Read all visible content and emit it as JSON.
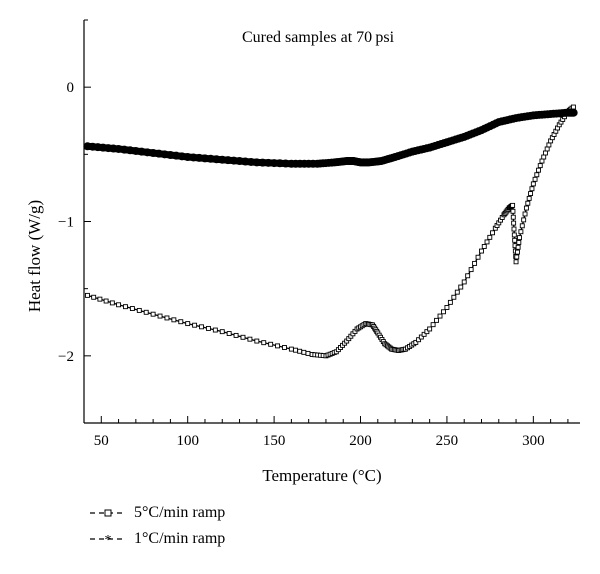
{
  "chart_data": {
    "type": "line",
    "annotation": "Cured samples at 70 psi",
    "xlabel": "Temperature (°C)",
    "ylabel": "Heat flow (W/g)",
    "xlim": [
      40,
      327
    ],
    "ylim": [
      -2.5,
      0.5
    ],
    "x_ticks": [
      50,
      100,
      150,
      200,
      250,
      300
    ],
    "x_tick_labels": [
      "50",
      "100",
      "150",
      "200",
      "250",
      "300"
    ],
    "y_ticks": [
      0,
      -1,
      -2
    ],
    "y_tick_labels": [
      "0",
      "−1",
      "−2"
    ],
    "grid": false,
    "legend_position": "bottom-left, below plot",
    "series": [
      {
        "name": "5°C/min ramp",
        "marker": "open-square",
        "x": [
          42,
          60,
          80,
          100,
          120,
          140,
          160,
          172,
          180,
          186,
          192,
          198,
          203,
          207,
          210,
          214,
          218,
          222,
          226,
          232,
          240,
          250,
          260,
          270,
          278,
          283,
          286,
          288,
          289,
          290,
          292,
          296,
          300,
          305,
          310,
          315,
          320,
          324
        ],
        "y": [
          -1.55,
          -1.62,
          -1.69,
          -1.76,
          -1.82,
          -1.89,
          -1.95,
          -1.99,
          -2.0,
          -1.97,
          -1.89,
          -1.8,
          -1.76,
          -1.77,
          -1.83,
          -1.91,
          -1.95,
          -1.96,
          -1.95,
          -1.9,
          -1.8,
          -1.64,
          -1.45,
          -1.22,
          -1.05,
          -0.95,
          -0.9,
          -0.88,
          -1.1,
          -1.3,
          -1.12,
          -0.9,
          -0.72,
          -0.55,
          -0.4,
          -0.28,
          -0.18,
          -0.14
        ]
      },
      {
        "name": "1°C/min ramp",
        "marker": "asterisk",
        "x": [
          42,
          60,
          80,
          100,
          120,
          140,
          160,
          175,
          185,
          192,
          196,
          200,
          205,
          212,
          220,
          230,
          240,
          250,
          260,
          270,
          280,
          290,
          300,
          310,
          320,
          324
        ],
        "y": [
          -0.44,
          -0.46,
          -0.49,
          -0.52,
          -0.54,
          -0.56,
          -0.57,
          -0.57,
          -0.56,
          -0.55,
          -0.55,
          -0.56,
          -0.56,
          -0.55,
          -0.52,
          -0.48,
          -0.45,
          -0.41,
          -0.37,
          -0.32,
          -0.26,
          -0.23,
          -0.21,
          -0.2,
          -0.19,
          -0.19
        ]
      }
    ]
  }
}
